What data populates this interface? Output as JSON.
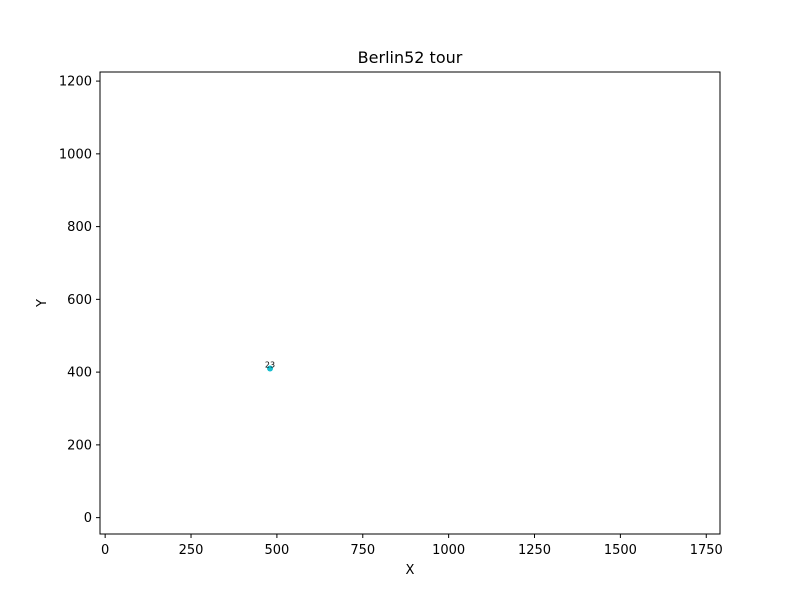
{
  "chart_data": {
    "type": "scatter",
    "title": "Berlin52 tour",
    "xlabel": "X",
    "ylabel": "Y",
    "xlim": [
      -15,
      1790
    ],
    "ylim": [
      -45,
      1225
    ],
    "xticks": [
      0,
      250,
      500,
      750,
      1000,
      1250,
      1500,
      1750
    ],
    "yticks": [
      0,
      200,
      400,
      600,
      800,
      1000,
      1200
    ],
    "grid": false,
    "points": [
      {
        "x": 480,
        "y": 410,
        "label": "23",
        "color": "#17becf"
      }
    ],
    "colors": {
      "frame": "#000000",
      "marker": "#17becf"
    }
  }
}
